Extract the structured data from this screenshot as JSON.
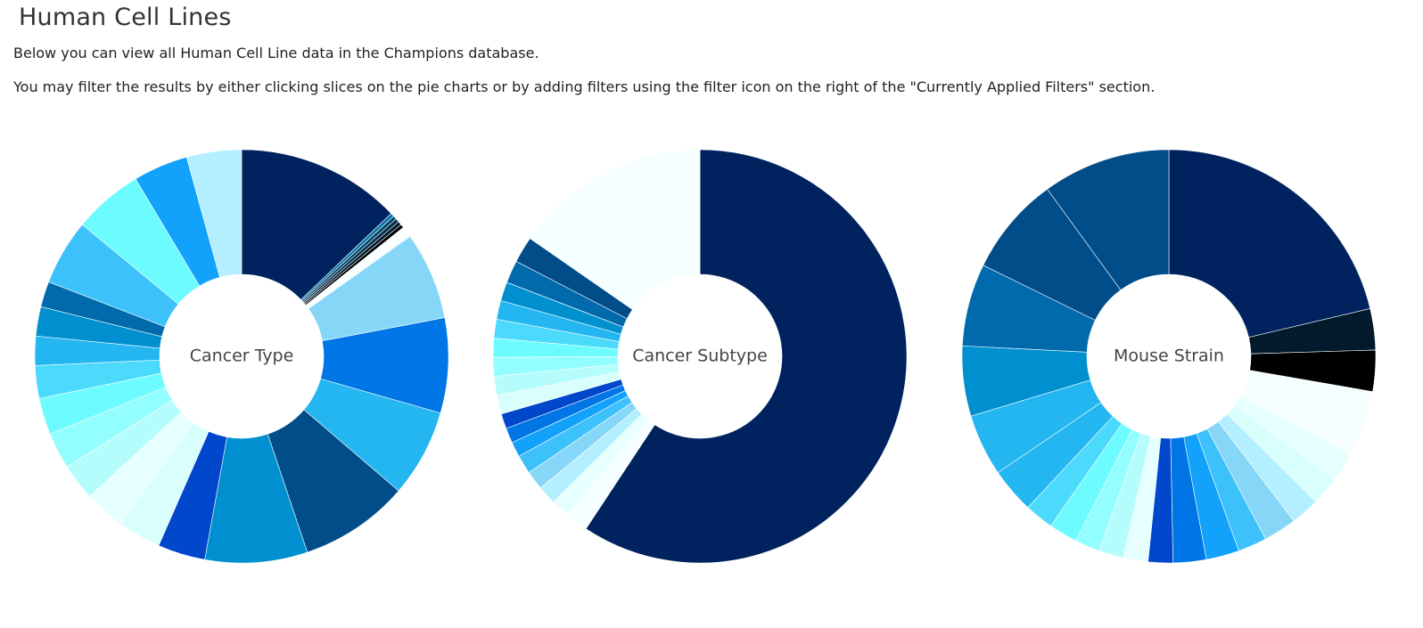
{
  "page": {
    "title": "Human Cell Lines",
    "intro_line_1": "Below you can view all Human Cell Line data in the Champions database.",
    "intro_line_2": "You may filter the results by either clicking slices on the pie charts or by adding filters using the filter icon on the right of the \"Currently Applied Filters\" section."
  },
  "colors": {
    "palette": [
      "#00235f",
      "#004d8a",
      "#006aad",
      "#0090cf",
      "#23b6f0",
      "#4bd9fc",
      "#6cfcff",
      "#93feff",
      "#b5fdfc",
      "#d9fffd",
      "#0047cc",
      "#0076e6",
      "#12a1fb",
      "#3cc1fb",
      "#86d7f7",
      "#b3efff",
      "#e6ffff",
      "#f6ffff",
      "#00bddb",
      "#0a77a8",
      "#04476a",
      "#032c47",
      "#021a2c",
      "#000000"
    ]
  },
  "chart_data": [
    {
      "type": "pie",
      "title": "Cancer Type",
      "values": [
        45,
        28,
        30,
        24,
        26,
        24,
        18,
        19,
        15,
        15,
        13,
        12,
        11,
        10,
        10,
        10,
        9,
        8,
        8,
        7,
        0.6,
        0.6,
        0.6,
        0.6,
        0.6,
        1,
        1,
        1,
        1,
        1
      ],
      "colors": [
        "#00235f",
        "#0090cf",
        "#004d8a",
        "#23b6f0",
        "#0076e6",
        "#86d7f7",
        "#3cc1fb",
        "#6cfcff",
        "#12a1fb",
        "#b3efff",
        "#0047cc",
        "#d9fffd",
        "#e6ffff",
        "#b5fdfc",
        "#93feff",
        "#6cfcff",
        "#4bd9fc",
        "#23b6f0",
        "#0090cf",
        "#006aad",
        "#f6ffff",
        "#f6ffff",
        "#f6ffff",
        "#f6ffff",
        "#f6ffff",
        "#000000",
        "#021a2c",
        "#032c47",
        "#04476a",
        "#0a77a8"
      ],
      "order": [
        0,
        29,
        28,
        27,
        26,
        25,
        24,
        23,
        22,
        21,
        20,
        5,
        4,
        3,
        2,
        1,
        10,
        11,
        12,
        13,
        14,
        15,
        16,
        17,
        18,
        19,
        6,
        7,
        8,
        9
      ],
      "grid": false,
      "legend": "none"
    },
    {
      "type": "pie",
      "title": "Cancer Subtype",
      "values": [
        201,
        6,
        5,
        5,
        5,
        5,
        4,
        4,
        4,
        5,
        5,
        5,
        5,
        5,
        5,
        5,
        6,
        7,
        8,
        8,
        8,
        9,
        9,
        10
      ],
      "colors": [
        "#00235f",
        "#f6ffff",
        "#e6ffff",
        "#b3efff",
        "#86d7f7",
        "#3cc1fb",
        "#12a1fb",
        "#0076e6",
        "#0047cc",
        "#d9fffd",
        "#b5fdfc",
        "#93feff",
        "#6cfcff",
        "#4bd9fc",
        "#23b6f0",
        "#0090cf",
        "#006aad",
        "#004d8a",
        "#f6ffff",
        "#f6ffff",
        "#f6ffff",
        "#f6ffff",
        "#f6ffff",
        "#f6ffff"
      ],
      "grid": false,
      "legend": "none"
    },
    {
      "type": "pie",
      "title": "Mouse Strain",
      "values": [
        66,
        10,
        10,
        8,
        8,
        7,
        7,
        7,
        8,
        7,
        8,
        8,
        6,
        6,
        6,
        6,
        7,
        7,
        11,
        15,
        17,
        20,
        24,
        31
      ],
      "colors": [
        "#00235f",
        "#021a2c",
        "#000000",
        "#f6ffff",
        "#f6ffff",
        "#e6ffff",
        "#d9fffd",
        "#b3efff",
        "#86d7f7",
        "#3cc1fb",
        "#12a1fb",
        "#0076e6",
        "#0047cc",
        "#e6ffff",
        "#b5fdfc",
        "#93feff",
        "#6cfcff",
        "#4bd9fc",
        "#23b6f0",
        "#23b6f0",
        "#0090cf",
        "#006aad",
        "#004d8a",
        "#004d8a"
      ],
      "grid": false,
      "legend": "none"
    }
  ]
}
